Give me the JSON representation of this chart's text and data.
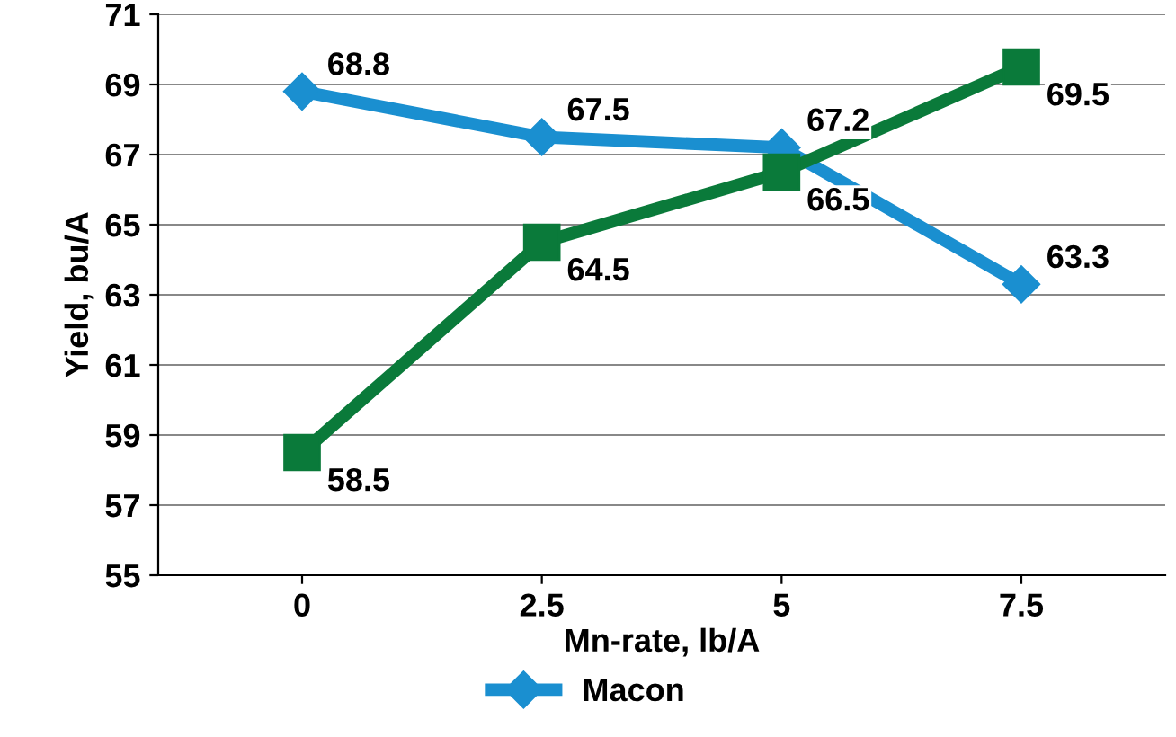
{
  "chart_data": {
    "type": "line",
    "xlabel": "Mn-rate, lb/A",
    "ylabel": "Yield, bu/A",
    "categories": [
      "0",
      "2.5",
      "5",
      "7.5"
    ],
    "series": [
      {
        "name": "Macon",
        "color": "#1a8fd0",
        "values": [
          68.8,
          67.5,
          67.2,
          63.3
        ],
        "marker": "diamond"
      },
      {
        "color": "#0a7a3a",
        "values": [
          58.5,
          64.5,
          66.5,
          69.5
        ],
        "marker": "square"
      }
    ],
    "ylim": [
      55,
      71
    ],
    "yticks": [
      55,
      57,
      59,
      61,
      63,
      65,
      67,
      69,
      71
    ],
    "grid": "y",
    "legend": "bottom",
    "data_labels": true
  }
}
